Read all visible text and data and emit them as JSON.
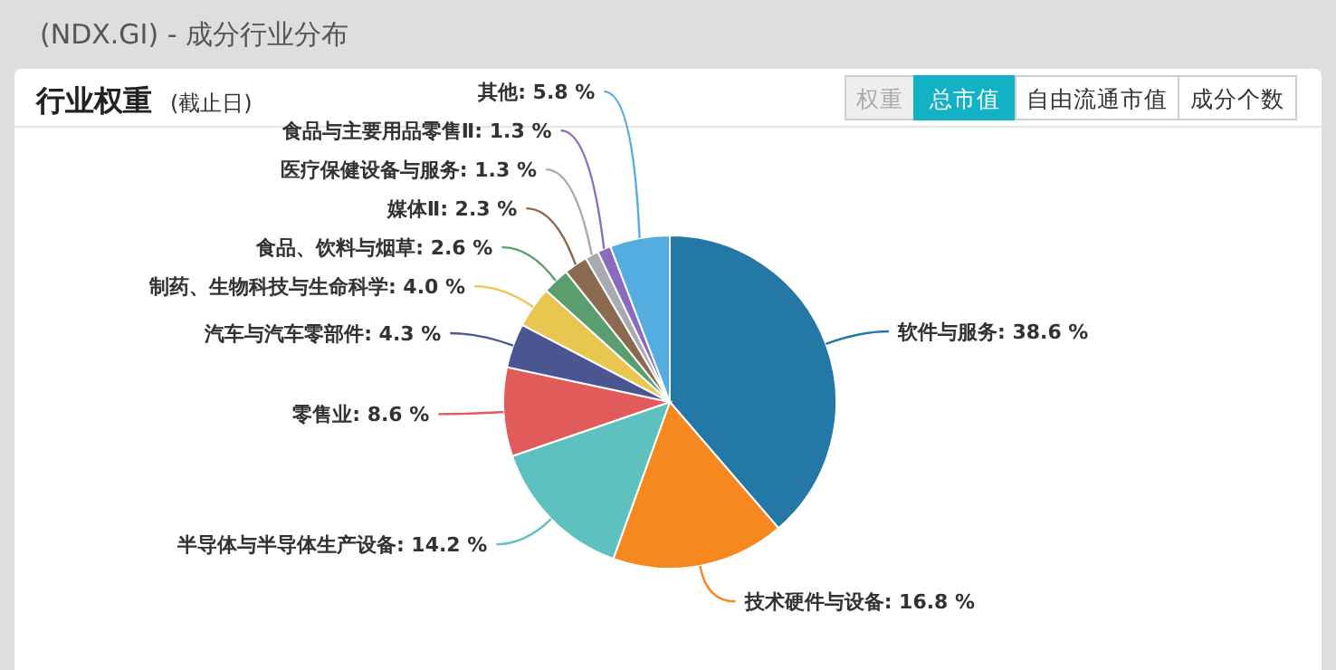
{
  "chart_data": {
    "type": "pie",
    "title": "(NDX.GI) - 成分行业分布",
    "subtitle": "行业权重",
    "annotations": [
      "(截止日)",
      "权重",
      "总市值",
      "自由流通市值",
      "成分个数"
    ],
    "categories": [
      "软件与服务",
      "技术硬件与设备",
      "半导体与半导体生产设备",
      "零售业",
      "汽车与汽车零部件",
      "制药、生物科技与生命科学",
      "食品、饮料与烟草",
      "媒体Ⅱ",
      "医疗保健设备与服务",
      "食品与主要用品零售Ⅱ",
      "其他"
    ],
    "values": [
      38.6,
      16.8,
      14.2,
      8.6,
      4.3,
      4.0,
      2.6,
      2.3,
      1.3,
      1.3,
      5.8
    ],
    "colors": [
      "#2378a5",
      "#f5891f",
      "#5fc1bf",
      "#e15b5b",
      "#4a5592",
      "#e8c650",
      "#5a9e70",
      "#8c6a4f",
      "#a7aab0",
      "#8a6cbe",
      "#54ade0"
    ],
    "value_labels": [
      ": 38.6 %",
      ": 16.8 %",
      ": 14.2 %",
      ": 8.6 %",
      ": 4.3 %",
      ": 4.0 %",
      ": 2.6 %",
      ": 2.3 %",
      ": 1.3 %",
      ": 1.3 %",
      ": 5.8 %"
    ]
  }
}
